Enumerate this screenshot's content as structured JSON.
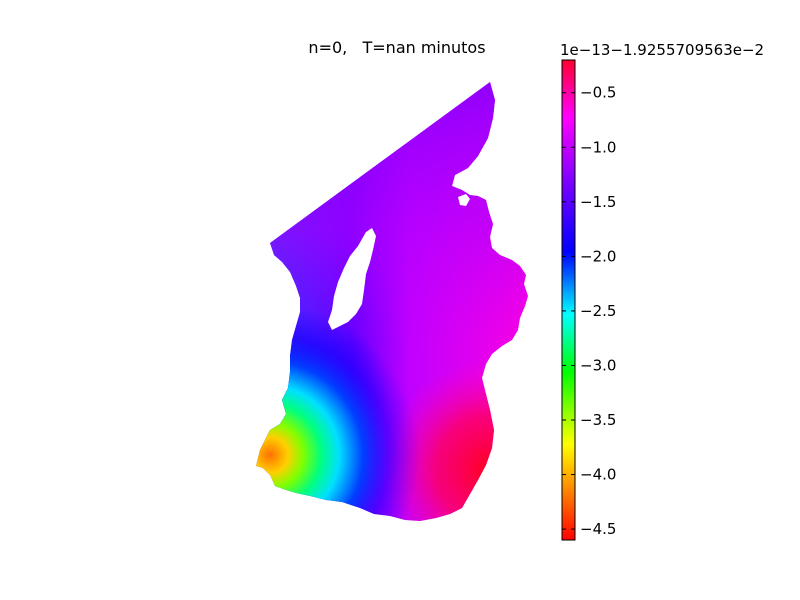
{
  "chart_data": {
    "type": "heatmap",
    "title": "n=0,   T=nan minutos",
    "xlabel": "",
    "ylabel": "",
    "colormap": "hsv-like (red → magenta)",
    "colorbar": {
      "offset_label": "1e−13−1.9255709563e−2",
      "range": [
        -4.6,
        -0.2
      ],
      "ticks": [
        -0.5,
        -1.0,
        -1.5,
        -2.0,
        -2.5,
        -3.0,
        -3.5,
        -4.0,
        -4.5
      ],
      "tick_labels": [
        "−0.5",
        "−1.0",
        "−1.5",
        "−2.0",
        "−2.5",
        "−3.0",
        "−3.5",
        "−4.0",
        "−4.5"
      ],
      "colors": [
        "#ff0000",
        "#ff8000",
        "#ffff00",
        "#00ff00",
        "#00ffff",
        "#0000ff",
        "#8000ff",
        "#ff00ff",
        "#ff0030"
      ]
    },
    "field_description_colors": {
      "southwest": "#ff8000",
      "west": "#00ffff",
      "center": "#0000ff",
      "north": "#b000ff",
      "east": "#ff00ff",
      "southeast": "#ff0030"
    }
  }
}
